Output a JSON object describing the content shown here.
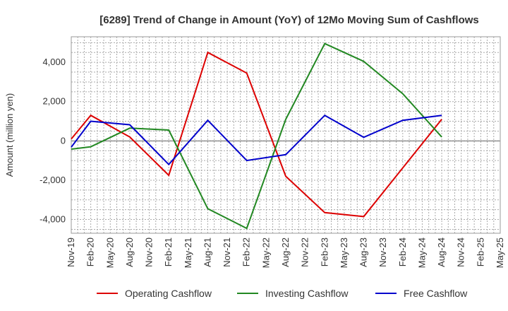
{
  "chart_data": {
    "type": "line",
    "title": "[6289]  Trend of Change in Amount (YoY) of 12Mo Moving Sum of Cashflows",
    "xlabel": "",
    "ylabel": "Amount (million yen)",
    "ylim": [
      -4700,
      5300
    ],
    "yticks": [
      -4000,
      -2000,
      0,
      2000,
      4000
    ],
    "ytick_labels": [
      "-4,000",
      "-2,000",
      "0",
      "2,000",
      "4,000"
    ],
    "categories": [
      "Nov-19",
      "Feb-20",
      "May-20",
      "Aug-20",
      "Nov-20",
      "Feb-21",
      "May-21",
      "Aug-21",
      "Nov-21",
      "Feb-22",
      "May-22",
      "Aug-22",
      "Nov-22",
      "Feb-23",
      "May-23",
      "Aug-23",
      "Nov-23",
      "Feb-24",
      "May-24",
      "Aug-24",
      "Nov-24",
      "Feb-25",
      "May-25"
    ],
    "series": [
      {
        "name": "Operating Cashflow",
        "color": "#dd0000",
        "values": [
          100,
          1300,
          null,
          200,
          null,
          -1750,
          null,
          4500,
          null,
          3450,
          null,
          -1800,
          null,
          -3650,
          null,
          -3850,
          null,
          null,
          null,
          1100,
          null,
          null,
          null
        ]
      },
      {
        "name": "Investing Cashflow",
        "color": "#228822",
        "values": [
          -420,
          -300,
          null,
          650,
          null,
          550,
          null,
          -3450,
          null,
          -4450,
          null,
          1100,
          null,
          4950,
          null,
          4050,
          null,
          2400,
          null,
          200,
          null,
          null,
          null
        ]
      },
      {
        "name": "Free Cashflow",
        "color": "#0000cc",
        "values": [
          -320,
          1000,
          null,
          820,
          null,
          -1200,
          null,
          1050,
          null,
          -1000,
          null,
          -700,
          null,
          1300,
          null,
          180,
          null,
          1050,
          null,
          1300,
          null,
          null,
          null
        ]
      }
    ],
    "grid": true,
    "legend_position": "bottom"
  }
}
